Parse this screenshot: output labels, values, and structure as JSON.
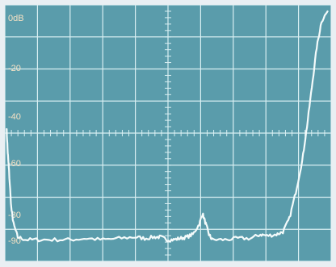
{
  "display": {
    "y_labels": [
      "0dB",
      "-20",
      "-40",
      "-60",
      "-80",
      "-90"
    ]
  },
  "chart_data": {
    "type": "line",
    "title": "",
    "xlabel": "",
    "ylabel": "",
    "ylim": [
      -95,
      0
    ],
    "y_tick_labels": [
      "0dB",
      "-20",
      "-40",
      "-60",
      "-80",
      "-90"
    ],
    "grid": true,
    "series": [
      {
        "points": [
          [
            0.0,
            -45
          ],
          [
            0.004,
            -55
          ],
          [
            0.008,
            -62
          ],
          [
            0.015,
            -76
          ],
          [
            0.022,
            -82
          ],
          [
            0.035,
            -87
          ],
          [
            0.06,
            -88
          ],
          [
            0.1,
            -88
          ],
          [
            0.15,
            -88
          ],
          [
            0.2,
            -88
          ],
          [
            0.25,
            -87.5
          ],
          [
            0.3,
            -88
          ],
          [
            0.35,
            -87.5
          ],
          [
            0.4,
            -87
          ],
          [
            0.43,
            -87.5
          ],
          [
            0.46,
            -87
          ],
          [
            0.48,
            -87
          ],
          [
            0.5,
            -88
          ],
          [
            0.52,
            -88
          ],
          [
            0.54,
            -87.5
          ],
          [
            0.56,
            -87
          ],
          [
            0.58,
            -86
          ],
          [
            0.6,
            -82
          ],
          [
            0.61,
            -78
          ],
          [
            0.62,
            -82
          ],
          [
            0.63,
            -86
          ],
          [
            0.64,
            -88
          ],
          [
            0.68,
            -88
          ],
          [
            0.72,
            -87.5
          ],
          [
            0.76,
            -87.5
          ],
          [
            0.79,
            -86
          ],
          [
            0.81,
            -86.5
          ],
          [
            0.84,
            -86
          ],
          [
            0.86,
            -85
          ],
          [
            0.88,
            -80
          ],
          [
            0.9,
            -70
          ],
          [
            0.92,
            -58
          ],
          [
            0.935,
            -45
          ],
          [
            0.95,
            -30
          ],
          [
            0.965,
            -15
          ],
          [
            0.98,
            -5
          ],
          [
            1.0,
            -1
          ]
        ]
      }
    ],
    "colors": {
      "screen_bg": "#5a9cab",
      "grid": "#d8eff2",
      "trace": "#f4fbfb",
      "label": "#f7e2c4",
      "frame": "#e9eff3"
    }
  }
}
